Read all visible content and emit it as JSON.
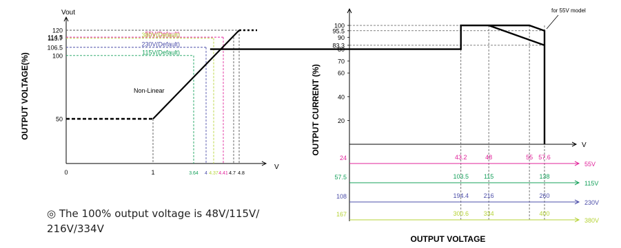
{
  "colors": {
    "axis": "#000000",
    "helper": "#555555",
    "v55": "#e0239a",
    "v380": "#b5d335",
    "v230": "#4a4ca8",
    "v115": "#14a05a",
    "v115alt": "#1d9f52",
    "black": "#000000"
  },
  "note": {
    "symbol": "◎",
    "text": "The 100% output voltage is 48V/115V/ 216V/334V"
  },
  "chart_data": [
    {
      "type": "line",
      "xlabel": "V",
      "ylabel": "OUTPUT  VOLTAGE(%)",
      "y_axis_title": "Vout",
      "x_ticks": [
        "0",
        "1",
        "3.64",
        "4",
        "4.37",
        "4.41",
        "4.7",
        "4.8"
      ],
      "y_ticks": [
        "120",
        "114.5",
        "113.7",
        "106.5",
        "100",
        "50"
      ],
      "curve_label": "Non-Linear",
      "series": [
        {
          "name": "",
          "x": [
            0,
            1
          ],
          "y": [
            50,
            50
          ],
          "style": "dashed"
        },
        {
          "name": "",
          "x": [
            1,
            4.8
          ],
          "y": [
            50,
            120
          ],
          "style": "solid"
        },
        {
          "name": "",
          "x": [
            4.8,
            5.2
          ],
          "y": [
            120,
            120
          ],
          "style": "dashed"
        }
      ],
      "annotations": [
        {
          "label": "55V(Default)",
          "y": 114.5,
          "x_end": 4.41,
          "color": "#e0239a"
        },
        {
          "label": "380V(Default)",
          "y": 113.7,
          "x_end": 4.37,
          "color": "#b5d335"
        },
        {
          "label": "230V(Default)",
          "y": 106.5,
          "x_end": 4.0,
          "color": "#4a4ca8"
        },
        {
          "label": "115V(Default)",
          "y": 100,
          "x_end": 3.64,
          "color": "#14a05a"
        }
      ]
    },
    {
      "type": "line",
      "xlabel": "OUTPUT VOLTAGE",
      "ylabel": "OUTPUT CURRENT (%)",
      "x_unit": "V",
      "y_ticks": [
        "100",
        "95.5",
        "90",
        "83.3",
        "80",
        "70",
        "60",
        "40",
        "20"
      ],
      "model_note": "for 55V model",
      "series": [
        {
          "name": "",
          "x": [
            0,
            43.2,
            43.2,
            55,
            57.6,
            57.6
          ],
          "y": [
            80,
            80,
            100,
            100,
            95.5,
            0
          ]
        },
        {
          "name": "",
          "x": [
            48,
            57.6
          ],
          "y": [
            100,
            83.3
          ]
        }
      ],
      "voltage_scales": [
        {
          "name": "55V",
          "start": "24",
          "ticks": [
            "43.2",
            "48",
            "55",
            "57.6"
          ],
          "color": "#e0239a"
        },
        {
          "name": "115V",
          "start": "57.5",
          "ticks": [
            "103.5",
            "115",
            "",
            "138"
          ],
          "color": "#14a05a"
        },
        {
          "name": "230V",
          "start": "108",
          "ticks": [
            "194.4",
            "216",
            "",
            "260"
          ],
          "color": "#4a4ca8"
        },
        {
          "name": "380V",
          "start": "167",
          "ticks": [
            "300.6",
            "334",
            "",
            "400"
          ],
          "color": "#b5d335"
        }
      ]
    }
  ]
}
